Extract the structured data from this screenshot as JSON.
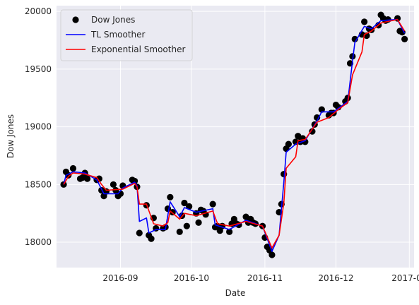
{
  "chart_data": {
    "type": "line",
    "title": "",
    "xlabel": "Date",
    "ylabel": "Dow Jones",
    "x_ticks": [
      "2016-09",
      "2016-10",
      "2016-11",
      "2016-12",
      "2017-01"
    ],
    "y_ticks": [
      18000,
      18500,
      19000,
      19500,
      20000
    ],
    "ylim": [
      17780,
      20050
    ],
    "xlim": [
      "2016-08-05",
      "2017-01-03"
    ],
    "grid": true,
    "legend_position": "top-left",
    "series": [
      {
        "name": "Dow Jones",
        "style": "markers",
        "color": "#000000",
        "points": [
          [
            "2016-08-08",
            18500
          ],
          [
            "2016-08-09",
            18610
          ],
          [
            "2016-08-10",
            18580
          ],
          [
            "2016-08-12",
            18640
          ],
          [
            "2016-08-15",
            18550
          ],
          [
            "2016-08-16",
            18560
          ],
          [
            "2016-08-17",
            18600
          ],
          [
            "2016-08-18",
            18550
          ],
          [
            "2016-08-22",
            18540
          ],
          [
            "2016-08-23",
            18550
          ],
          [
            "2016-08-24",
            18450
          ],
          [
            "2016-08-25",
            18400
          ],
          [
            "2016-08-26",
            18440
          ],
          [
            "2016-08-29",
            18500
          ],
          [
            "2016-08-30",
            18450
          ],
          [
            "2016-08-31",
            18400
          ],
          [
            "2016-09-01",
            18420
          ],
          [
            "2016-09-02",
            18490
          ],
          [
            "2016-09-06",
            18540
          ],
          [
            "2016-09-07",
            18530
          ],
          [
            "2016-09-08",
            18480
          ],
          [
            "2016-09-09",
            18080
          ],
          [
            "2016-09-12",
            18320
          ],
          [
            "2016-09-13",
            18060
          ],
          [
            "2016-09-14",
            18030
          ],
          [
            "2016-09-15",
            18210
          ],
          [
            "2016-09-16",
            18120
          ],
          [
            "2016-09-19",
            18120
          ],
          [
            "2016-09-20",
            18130
          ],
          [
            "2016-09-21",
            18290
          ],
          [
            "2016-09-22",
            18390
          ],
          [
            "2016-09-23",
            18260
          ],
          [
            "2016-09-26",
            18090
          ],
          [
            "2016-09-27",
            18230
          ],
          [
            "2016-09-28",
            18340
          ],
          [
            "2016-09-29",
            18140
          ],
          [
            "2016-09-30",
            18310
          ],
          [
            "2016-10-03",
            18250
          ],
          [
            "2016-10-04",
            18170
          ],
          [
            "2016-10-05",
            18280
          ],
          [
            "2016-10-06",
            18270
          ],
          [
            "2016-10-07",
            18240
          ],
          [
            "2016-10-10",
            18330
          ],
          [
            "2016-10-11",
            18130
          ],
          [
            "2016-10-12",
            18140
          ],
          [
            "2016-10-13",
            18100
          ],
          [
            "2016-10-14",
            18140
          ],
          [
            "2016-10-17",
            18090
          ],
          [
            "2016-10-18",
            18160
          ],
          [
            "2016-10-19",
            18200
          ],
          [
            "2016-10-20",
            18160
          ],
          [
            "2016-10-21",
            18150
          ],
          [
            "2016-10-24",
            18220
          ],
          [
            "2016-10-25",
            18170
          ],
          [
            "2016-10-26",
            18200
          ],
          [
            "2016-10-27",
            18170
          ],
          [
            "2016-10-28",
            18160
          ],
          [
            "2016-10-31",
            18140
          ],
          [
            "2016-11-01",
            18040
          ],
          [
            "2016-11-02",
            17960
          ],
          [
            "2016-11-03",
            17930
          ],
          [
            "2016-11-04",
            17890
          ],
          [
            "2016-11-07",
            18260
          ],
          [
            "2016-11-08",
            18330
          ],
          [
            "2016-11-09",
            18590
          ],
          [
            "2016-11-10",
            18810
          ],
          [
            "2016-11-11",
            18850
          ],
          [
            "2016-11-14",
            18870
          ],
          [
            "2016-11-15",
            18920
          ],
          [
            "2016-11-16",
            18870
          ],
          [
            "2016-11-17",
            18900
          ],
          [
            "2016-11-18",
            18870
          ],
          [
            "2016-11-21",
            18960
          ],
          [
            "2016-11-22",
            19020
          ],
          [
            "2016-11-23",
            19080
          ],
          [
            "2016-11-25",
            19150
          ],
          [
            "2016-11-28",
            19100
          ],
          [
            "2016-11-29",
            19120
          ],
          [
            "2016-11-30",
            19120
          ],
          [
            "2016-12-01",
            19190
          ],
          [
            "2016-12-02",
            19170
          ],
          [
            "2016-12-05",
            19220
          ],
          [
            "2016-12-06",
            19250
          ],
          [
            "2016-12-07",
            19550
          ],
          [
            "2016-12-08",
            19610
          ],
          [
            "2016-12-09",
            19760
          ],
          [
            "2016-12-12",
            19800
          ],
          [
            "2016-12-13",
            19910
          ],
          [
            "2016-12-14",
            19790
          ],
          [
            "2016-12-15",
            19850
          ],
          [
            "2016-12-16",
            19840
          ],
          [
            "2016-12-19",
            19880
          ],
          [
            "2016-12-20",
            19970
          ],
          [
            "2016-12-21",
            19940
          ],
          [
            "2016-12-22",
            19920
          ],
          [
            "2016-12-23",
            19930
          ],
          [
            "2016-12-27",
            19940
          ],
          [
            "2016-12-28",
            19830
          ],
          [
            "2016-12-29",
            19820
          ],
          [
            "2016-12-30",
            19760
          ]
        ]
      },
      {
        "name": "TL Smoother",
        "style": "line",
        "color": "#0000ff",
        "points": [
          [
            "2016-08-08",
            18500
          ],
          [
            "2016-08-09",
            18580
          ],
          [
            "2016-08-12",
            18610
          ],
          [
            "2016-08-17",
            18600
          ],
          [
            "2016-08-22",
            18540
          ],
          [
            "2016-08-25",
            18420
          ],
          [
            "2016-08-31",
            18420
          ],
          [
            "2016-09-02",
            18470
          ],
          [
            "2016-09-07",
            18520
          ],
          [
            "2016-09-08",
            18490
          ],
          [
            "2016-09-09",
            18180
          ],
          [
            "2016-09-12",
            18210
          ],
          [
            "2016-09-13",
            18080
          ],
          [
            "2016-09-16",
            18110
          ],
          [
            "2016-09-20",
            18110
          ],
          [
            "2016-09-22",
            18350
          ],
          [
            "2016-09-26",
            18220
          ],
          [
            "2016-09-28",
            18300
          ],
          [
            "2016-10-03",
            18260
          ],
          [
            "2016-10-10",
            18290
          ],
          [
            "2016-10-11",
            18150
          ],
          [
            "2016-10-17",
            18110
          ],
          [
            "2016-10-24",
            18190
          ],
          [
            "2016-10-31",
            18140
          ],
          [
            "2016-11-04",
            17920
          ],
          [
            "2016-11-07",
            18060
          ],
          [
            "2016-11-09",
            18520
          ],
          [
            "2016-11-10",
            18780
          ],
          [
            "2016-11-14",
            18850
          ],
          [
            "2016-11-18",
            18880
          ],
          [
            "2016-11-23",
            19050
          ],
          [
            "2016-11-25",
            19130
          ],
          [
            "2016-11-30",
            19130
          ],
          [
            "2016-12-06",
            19220
          ],
          [
            "2016-12-08",
            19570
          ],
          [
            "2016-12-09",
            19730
          ],
          [
            "2016-12-13",
            19870
          ],
          [
            "2016-12-16",
            19850
          ],
          [
            "2016-12-20",
            19920
          ],
          [
            "2016-12-27",
            19930
          ],
          [
            "2016-12-30",
            19810
          ]
        ]
      },
      {
        "name": "Exponential Smoother",
        "style": "line",
        "color": "#ff0000",
        "points": [
          [
            "2016-08-08",
            18500
          ],
          [
            "2016-08-10",
            18570
          ],
          [
            "2016-08-12",
            18600
          ],
          [
            "2016-08-17",
            18590
          ],
          [
            "2016-08-22",
            18560
          ],
          [
            "2016-08-24",
            18500
          ],
          [
            "2016-08-26",
            18450
          ],
          [
            "2016-09-02",
            18460
          ],
          [
            "2016-09-07",
            18510
          ],
          [
            "2016-09-08",
            18480
          ],
          [
            "2016-09-09",
            18330
          ],
          [
            "2016-09-12",
            18330
          ],
          [
            "2016-09-15",
            18160
          ],
          [
            "2016-09-19",
            18140
          ],
          [
            "2016-09-21",
            18170
          ],
          [
            "2016-09-22",
            18270
          ],
          [
            "2016-09-26",
            18200
          ],
          [
            "2016-09-28",
            18250
          ],
          [
            "2016-10-03",
            18230
          ],
          [
            "2016-10-10",
            18270
          ],
          [
            "2016-10-12",
            18160
          ],
          [
            "2016-10-17",
            18140
          ],
          [
            "2016-10-24",
            18180
          ],
          [
            "2016-10-31",
            18140
          ],
          [
            "2016-11-04",
            17950
          ],
          [
            "2016-11-07",
            18060
          ],
          [
            "2016-11-09",
            18340
          ],
          [
            "2016-11-10",
            18640
          ],
          [
            "2016-11-14",
            18740
          ],
          [
            "2016-11-15",
            18880
          ],
          [
            "2016-11-18",
            18890
          ],
          [
            "2016-11-23",
            19040
          ],
          [
            "2016-11-28",
            19080
          ],
          [
            "2016-12-02",
            19150
          ],
          [
            "2016-12-06",
            19210
          ],
          [
            "2016-12-08",
            19450
          ],
          [
            "2016-12-12",
            19650
          ],
          [
            "2016-12-13",
            19800
          ],
          [
            "2016-12-16",
            19830
          ],
          [
            "2016-12-20",
            19900
          ],
          [
            "2016-12-27",
            19930
          ],
          [
            "2016-12-30",
            19830
          ]
        ]
      }
    ]
  }
}
